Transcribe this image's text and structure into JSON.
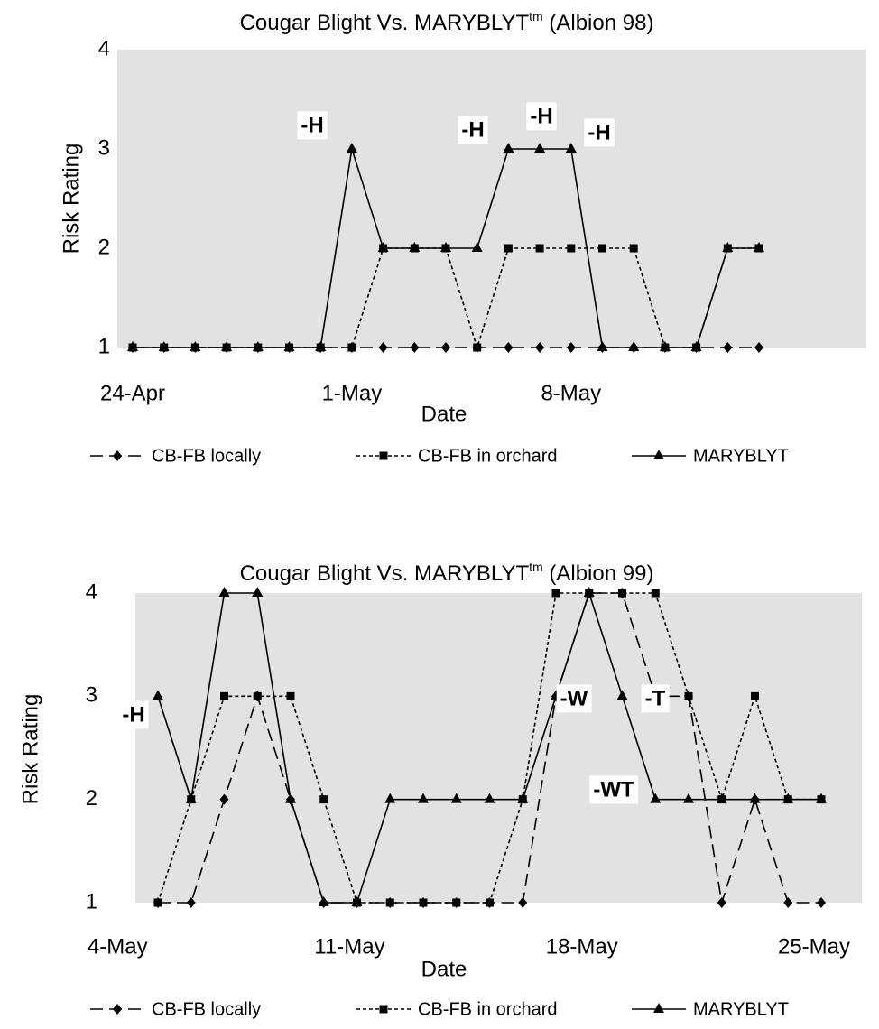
{
  "chart_data": [
    {
      "type": "line",
      "title": "Cougar Blight Vs. MARYBLYT",
      "title_sup": "tm",
      "title_tail": " (Albion 98)",
      "x_label": "Date",
      "y_label": "Risk Rating",
      "categories": [
        "24-Apr",
        null,
        null,
        null,
        null,
        null,
        null,
        "1-May",
        null,
        null,
        null,
        null,
        null,
        null,
        "8-May",
        null,
        null,
        null,
        null,
        null,
        null
      ],
      "ylim": [
        1,
        4
      ],
      "yticks": [
        1,
        2,
        3,
        4
      ],
      "grid": false,
      "legend": "bottom",
      "series": [
        {
          "name": "CB-FB locally",
          "color": "#000000",
          "line_style": "long-dash",
          "marker": "diamond",
          "values": [
            1,
            1,
            1,
            1,
            1,
            1,
            1,
            1,
            1,
            1,
            1,
            1,
            1,
            1,
            1,
            1,
            1,
            1,
            1,
            1,
            1
          ]
        },
        {
          "name": "CB-FB in orchard",
          "color": "#000000",
          "line_style": "short-dash",
          "marker": "square",
          "values": [
            1,
            1,
            1,
            1,
            1,
            1,
            1,
            1,
            2,
            2,
            2,
            1,
            2,
            2,
            2,
            2,
            2,
            1,
            1,
            2,
            2
          ]
        },
        {
          "name": "MARYBLYT",
          "color": "#000000",
          "line_style": "solid",
          "marker": "triangle",
          "values": [
            1,
            1,
            1,
            1,
            1,
            1,
            1,
            3,
            2,
            2,
            2,
            2,
            3,
            3,
            3,
            1,
            1,
            1,
            1,
            2,
            2
          ]
        }
      ],
      "annotations": [
        "-H",
        "-H",
        "-H",
        "-H"
      ]
    },
    {
      "type": "line",
      "title": "Cougar Blight Vs. MARYBLYT",
      "title_sup": "tm",
      "title_tail": " (Albion 99)",
      "x_label": "Date",
      "y_label": "Risk Rating",
      "categories": [
        "4-May",
        null,
        null,
        null,
        null,
        null,
        null,
        "11-May",
        null,
        null,
        null,
        null,
        null,
        null,
        "18-May",
        null,
        null,
        null,
        null,
        null,
        null,
        "25-May"
      ],
      "ylim": [
        1,
        4
      ],
      "yticks": [
        1,
        2,
        3,
        4
      ],
      "grid": false,
      "legend": "bottom",
      "series": [
        {
          "name": "CB-FB locally",
          "color": "#000000",
          "line_style": "long-dash",
          "marker": "diamond",
          "values": [
            null,
            1,
            1,
            2,
            3,
            2,
            1,
            1,
            1,
            1,
            1,
            1,
            1,
            3,
            4,
            4,
            3,
            3,
            1,
            2,
            1,
            1
          ]
        },
        {
          "name": "CB-FB in orchard",
          "color": "#000000",
          "line_style": "short-dash",
          "marker": "square",
          "values": [
            null,
            1,
            2,
            3,
            3,
            3,
            2,
            1,
            1,
            1,
            1,
            1,
            2,
            4,
            4,
            4,
            4,
            3,
            2,
            3,
            2,
            2
          ]
        },
        {
          "name": "MARYBLYT",
          "color": "#000000",
          "line_style": "solid",
          "marker": "triangle",
          "values": [
            null,
            3,
            2,
            4,
            4,
            2,
            1,
            1,
            2,
            2,
            2,
            2,
            2,
            3,
            4,
            3,
            2,
            2,
            2,
            2,
            2,
            2
          ]
        }
      ],
      "annotations": [
        "-H",
        "-W",
        "-T",
        "-WT"
      ]
    }
  ]
}
